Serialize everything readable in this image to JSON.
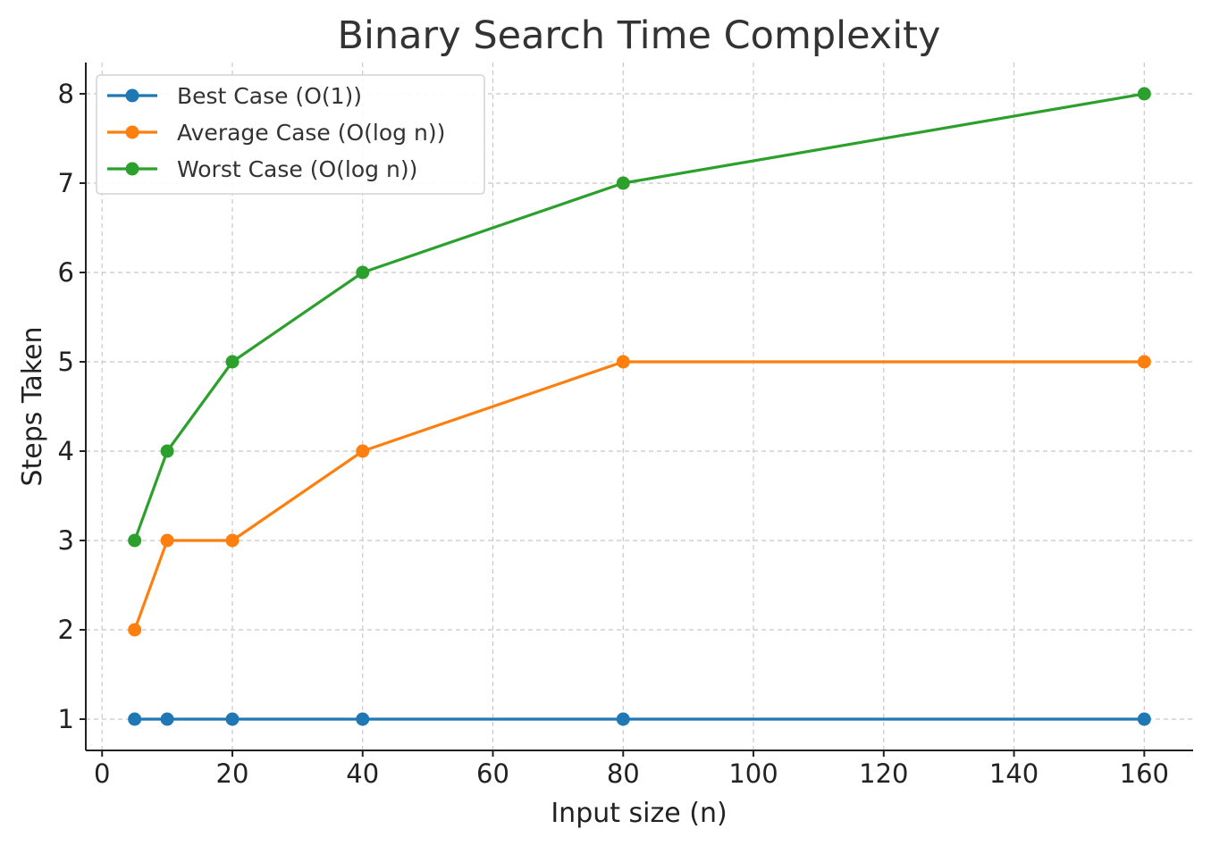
{
  "chart_data": {
    "type": "line",
    "title": "Binary Search Time Complexity",
    "xlabel": "Input size (n)",
    "ylabel": "Steps Taken",
    "x": [
      5,
      10,
      20,
      40,
      80,
      160
    ],
    "xlim": [
      -2.5,
      167.5
    ],
    "ylim": [
      0.65,
      8.35
    ],
    "xticks": [
      0,
      20,
      40,
      60,
      80,
      100,
      120,
      140,
      160
    ],
    "yticks": [
      1,
      2,
      3,
      4,
      5,
      6,
      7,
      8
    ],
    "grid": true,
    "legend_position": "top-left",
    "series": [
      {
        "name": "Best Case (O(1))",
        "color": "#1f77b4",
        "values": [
          1,
          1,
          1,
          1,
          1,
          1
        ]
      },
      {
        "name": "Average Case (O(log n))",
        "color": "#ff7f0e",
        "values": [
          2,
          3,
          3,
          4,
          5,
          5
        ]
      },
      {
        "name": "Worst Case (O(log n))",
        "color": "#2ca02c",
        "values": [
          3,
          4,
          5,
          6,
          7,
          8
        ]
      }
    ]
  }
}
